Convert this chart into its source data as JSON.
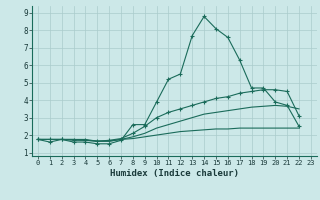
{
  "xlabel": "Humidex (Indice chaleur)",
  "ylabel": "",
  "bg_color": "#cce8e8",
  "grid_color": "#aacccc",
  "line_color": "#1a6b5a",
  "spine_color": "#1a6b5a",
  "xlim": [
    -0.5,
    23.5
  ],
  "ylim": [
    0.8,
    9.4
  ],
  "yticks": [
    1,
    2,
    3,
    4,
    5,
    6,
    7,
    8,
    9
  ],
  "xticks": [
    0,
    1,
    2,
    3,
    4,
    5,
    6,
    7,
    8,
    9,
    10,
    11,
    12,
    13,
    14,
    15,
    16,
    17,
    18,
    19,
    20,
    21,
    22,
    23
  ],
  "series": [
    {
      "x": [
        0,
        1,
        2,
        3,
        4,
        5,
        6,
        7,
        8,
        9,
        10,
        11,
        12,
        13,
        14,
        15,
        16,
        17,
        18,
        19,
        20,
        21,
        22
      ],
      "y": [
        1.75,
        1.6,
        1.75,
        1.6,
        1.6,
        1.5,
        1.5,
        1.7,
        2.6,
        2.6,
        3.9,
        5.2,
        5.5,
        7.7,
        8.8,
        8.1,
        7.6,
        6.3,
        4.7,
        4.7,
        3.9,
        3.7,
        2.5
      ],
      "marker": true
    },
    {
      "x": [
        0,
        1,
        2,
        3,
        4,
        5,
        6,
        7,
        8,
        9,
        10,
        11,
        12,
        13,
        14,
        15,
        16,
        17,
        18,
        19,
        20,
        21,
        22
      ],
      "y": [
        1.75,
        1.75,
        1.75,
        1.75,
        1.7,
        1.65,
        1.65,
        1.75,
        1.9,
        2.1,
        2.4,
        2.6,
        2.8,
        3.0,
        3.2,
        3.3,
        3.4,
        3.5,
        3.6,
        3.65,
        3.7,
        3.65,
        3.5
      ],
      "marker": false
    },
    {
      "x": [
        0,
        1,
        2,
        3,
        4,
        5,
        6,
        7,
        8,
        9,
        10,
        11,
        12,
        13,
        14,
        15,
        16,
        17,
        18,
        19,
        20,
        21,
        22
      ],
      "y": [
        1.75,
        1.75,
        1.75,
        1.7,
        1.7,
        1.65,
        1.7,
        1.8,
        2.1,
        2.5,
        3.0,
        3.3,
        3.5,
        3.7,
        3.9,
        4.1,
        4.2,
        4.4,
        4.5,
        4.6,
        4.6,
        4.5,
        3.1
      ],
      "marker": true
    },
    {
      "x": [
        0,
        1,
        2,
        3,
        4,
        5,
        6,
        7,
        8,
        9,
        10,
        11,
        12,
        13,
        14,
        15,
        16,
        17,
        18,
        19,
        20,
        21,
        22
      ],
      "y": [
        1.75,
        1.75,
        1.75,
        1.75,
        1.75,
        1.65,
        1.65,
        1.75,
        1.8,
        1.9,
        2.0,
        2.1,
        2.2,
        2.25,
        2.3,
        2.35,
        2.35,
        2.4,
        2.4,
        2.4,
        2.4,
        2.4,
        2.4
      ],
      "marker": false
    }
  ]
}
